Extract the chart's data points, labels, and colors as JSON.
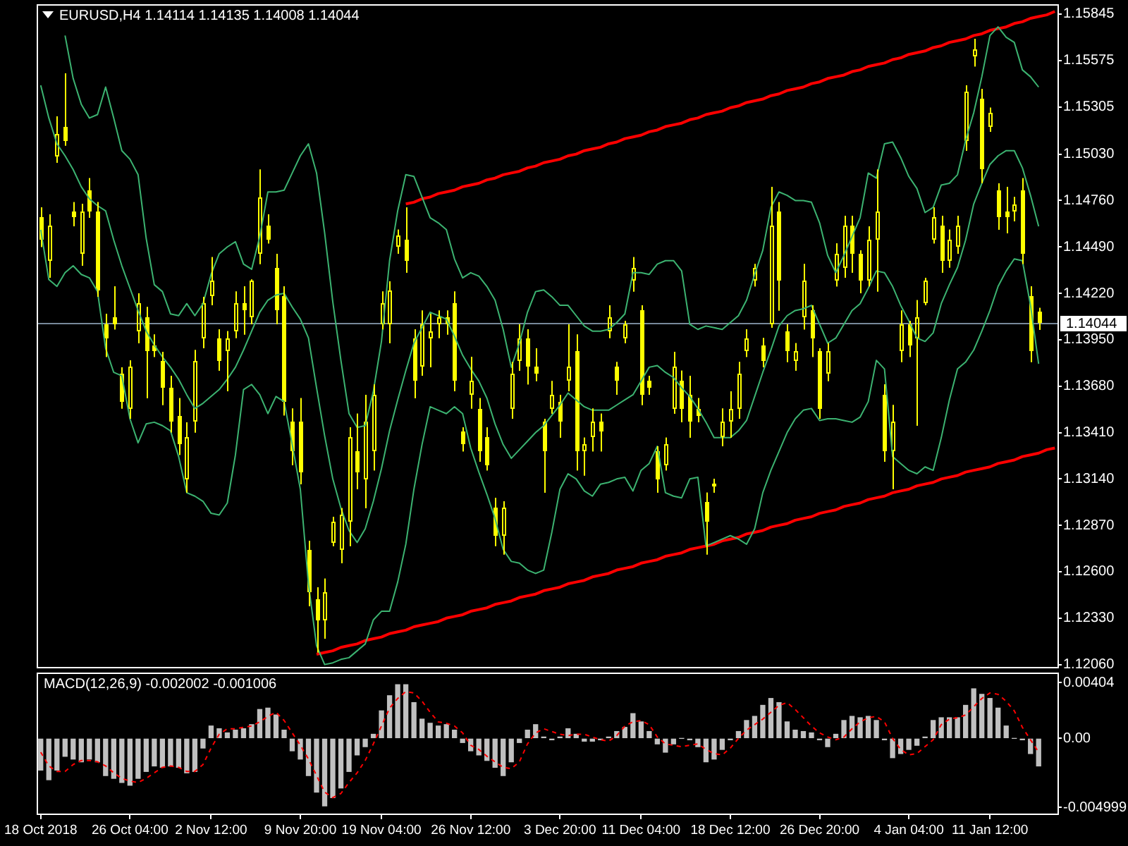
{
  "chart_data": [
    {
      "type": "candlestick",
      "title": "EURUSD,H4 1.14114 1.14135 1.14008 1.14044",
      "color": "#ffff00",
      "categories": [
        null,
        null,
        null,
        null,
        null,
        null,
        null,
        null,
        null,
        null,
        null,
        null,
        null,
        null,
        null,
        null,
        null,
        null,
        null,
        null,
        null,
        null,
        null,
        null,
        null,
        null,
        null,
        null,
        null,
        null,
        null,
        null,
        null,
        null,
        null,
        null,
        null,
        null,
        null,
        null,
        null,
        null,
        null,
        null,
        null,
        null,
        null,
        null,
        null,
        null,
        null,
        null,
        null,
        null,
        null,
        null,
        null,
        null,
        null,
        null,
        null,
        null,
        null,
        null,
        null,
        null,
        null,
        null,
        null,
        null,
        null,
        null,
        null,
        null,
        null,
        null,
        null,
        null,
        null,
        null,
        null,
        null,
        null,
        null,
        null,
        null,
        null,
        null,
        null,
        null,
        null,
        null,
        null,
        null,
        null,
        null,
        null,
        null,
        null,
        null,
        null,
        null,
        null,
        null,
        null,
        null,
        null,
        null,
        null,
        null,
        null,
        null,
        null,
        null,
        null,
        null,
        null,
        null,
        null,
        null,
        null,
        null,
        null,
        null,
        null,
        null
      ],
      "ohlc": [
        [
          1.1466,
          1.1472,
          1.1449,
          1.1453
        ],
        [
          1.1441,
          1.1468,
          1.1431,
          1.1461
        ],
        [
          1.1502,
          1.1525,
          1.1498,
          1.1515
        ],
        [
          1.1519,
          1.155,
          1.1508,
          1.1511
        ],
        [
          1.147,
          1.1475,
          1.1461,
          1.1466
        ],
        [
          1.1445,
          1.1474,
          1.1438,
          1.147
        ],
        [
          1.1482,
          1.1489,
          1.1466,
          1.147
        ],
        [
          1.147,
          1.1475,
          1.142,
          1.1424
        ],
        [
          1.1404,
          1.141,
          1.1385,
          1.1396
        ],
        [
          1.1408,
          1.1426,
          1.1401,
          1.1404
        ],
        [
          1.1375,
          1.1379,
          1.1355,
          1.1359
        ],
        [
          1.1355,
          1.1383,
          1.1349,
          1.1379
        ],
        [
          1.14,
          1.1422,
          1.1393,
          1.1416
        ],
        [
          1.1408,
          1.1414,
          1.1361,
          1.1388
        ],
        [
          1.1392,
          1.1398,
          1.1385,
          1.1388
        ],
        [
          1.1383,
          1.1388,
          1.1357,
          1.1367
        ],
        [
          1.1367,
          1.1374,
          1.1341,
          1.1347
        ],
        [
          1.1351,
          1.1361,
          1.1328,
          1.1334
        ],
        [
          1.1314,
          1.1347,
          1.1306,
          1.1338
        ],
        [
          1.1347,
          1.1389,
          1.1341,
          1.1383
        ],
        [
          1.1396,
          1.142,
          1.139,
          1.1416
        ],
        [
          1.142,
          1.1443,
          1.1415,
          1.1429
        ],
        [
          1.1396,
          1.1401,
          1.1377,
          1.1383
        ],
        [
          1.1388,
          1.14,
          1.1365,
          1.1396
        ],
        [
          1.14,
          1.1423,
          1.1396,
          1.1416
        ],
        [
          1.1416,
          1.1426,
          1.1398,
          1.1412
        ],
        [
          1.1408,
          1.143,
          1.1404,
          1.1429
        ],
        [
          1.1445,
          1.1494,
          1.1439,
          1.1478
        ],
        [
          1.1461,
          1.1468,
          1.1451,
          1.1453
        ],
        [
          1.1437,
          1.1445,
          1.1404,
          1.1412
        ],
        [
          1.142,
          1.1426,
          1.1351,
          1.1359
        ],
        [
          1.1347,
          1.1355,
          1.1322,
          1.133
        ],
        [
          1.1347,
          1.1361,
          1.1311,
          1.1318
        ],
        [
          1.1273,
          1.1278,
          1.124,
          1.1248
        ],
        [
          1.1244,
          1.1251,
          1.1213,
          1.1232
        ],
        [
          1.1232,
          1.1256,
          1.1221,
          1.1248
        ],
        [
          1.1277,
          1.1292,
          1.1275,
          1.1289
        ],
        [
          1.1273,
          1.1297,
          1.1265,
          1.1293
        ],
        [
          1.1289,
          1.1344,
          1.1275,
          1.1338
        ],
        [
          1.133,
          1.1352,
          1.1308,
          1.1318
        ],
        [
          1.1314,
          1.1363,
          1.1297,
          1.1347
        ],
        [
          1.133,
          1.1369,
          1.1319,
          1.1363
        ],
        [
          1.1404,
          1.1423,
          1.1401,
          1.1416
        ],
        [
          1.1404,
          1.1429,
          1.1393,
          1.1424
        ],
        [
          1.1449,
          1.1459,
          1.1445,
          1.1456
        ],
        [
          1.1453,
          1.1472,
          1.1434,
          1.1441
        ],
        [
          1.1396,
          1.1401,
          1.1361,
          1.1371
        ],
        [
          1.1379,
          1.1412,
          1.1374,
          1.1404
        ],
        [
          1.1396,
          1.141,
          1.1379,
          1.14
        ],
        [
          1.1404,
          1.1412,
          1.1396,
          1.1408
        ],
        [
          1.1408,
          1.1412,
          1.1398,
          1.1404
        ],
        [
          1.1416,
          1.1423,
          1.1365,
          1.1371
        ],
        [
          1.1342,
          1.1344,
          1.133,
          1.1334
        ],
        [
          1.1363,
          1.1385,
          1.1355,
          1.1371
        ],
        [
          1.1355,
          1.1361,
          1.1324,
          1.133
        ],
        [
          1.1338,
          1.1344,
          1.1319,
          1.1322
        ],
        [
          1.1297,
          1.1303,
          1.1275,
          1.1281
        ],
        [
          1.1281,
          1.1301,
          1.127,
          1.1297
        ],
        [
          1.1355,
          1.1382,
          1.1349,
          1.1375
        ],
        [
          1.1383,
          1.1404,
          1.1377,
          1.1396
        ],
        [
          1.1396,
          1.1401,
          1.1369,
          1.1379
        ],
        [
          1.1379,
          1.139,
          1.1371,
          1.1375
        ],
        [
          1.1347,
          1.1349,
          1.1306,
          1.133
        ],
        [
          1.1355,
          1.1371,
          1.1352,
          1.1363
        ],
        [
          1.1359,
          1.1363,
          1.1338,
          1.1347
        ],
        [
          1.1371,
          1.1404,
          1.1365,
          1.1379
        ],
        [
          1.1388,
          1.1398,
          1.1319,
          1.133
        ],
        [
          1.133,
          1.1338,
          1.1316,
          1.1334
        ],
        [
          1.1338,
          1.1355,
          1.133,
          1.1347
        ],
        [
          1.1347,
          1.1352,
          1.133,
          1.1342
        ],
        [
          1.14,
          1.1415,
          1.1396,
          1.1408
        ],
        [
          1.1379,
          1.1382,
          1.1363,
          1.1371
        ],
        [
          1.1396,
          1.1406,
          1.1393,
          1.1404
        ],
        [
          1.1429,
          1.1443,
          1.1423,
          1.1437
        ],
        [
          1.1412,
          1.1415,
          1.1357,
          1.1363
        ],
        [
          1.1371,
          1.1374,
          1.1363,
          1.1367
        ],
        [
          1.133,
          1.1333,
          1.1306,
          1.1314
        ],
        [
          1.1322,
          1.1338,
          1.1319,
          1.1334
        ],
        [
          1.1355,
          1.1388,
          1.1352,
          1.1379
        ],
        [
          1.1371,
          1.1377,
          1.1347,
          1.1355
        ],
        [
          1.1363,
          1.1374,
          1.1338,
          1.1347
        ],
        [
          1.1355,
          1.1361,
          1.1347,
          1.1351
        ],
        [
          1.1301,
          1.1306,
          1.127,
          1.1289
        ],
        [
          1.131,
          1.1314,
          1.1306,
          1.1311
        ],
        [
          1.1338,
          1.1355,
          1.1333,
          1.1347
        ],
        [
          1.1347,
          1.1365,
          1.1338,
          1.1355
        ],
        [
          1.1355,
          1.1382,
          1.1349,
          1.1375
        ],
        [
          1.1388,
          1.1401,
          1.1385,
          1.1396
        ],
        [
          1.1429,
          1.1439,
          1.1426,
          1.1437
        ],
        [
          1.1392,
          1.1396,
          1.1379,
          1.1383
        ],
        [
          1.1404,
          1.1484,
          1.1402,
          1.1461
        ],
        [
          1.147,
          1.1475,
          1.1412,
          1.1429
        ],
        [
          1.14,
          1.1404,
          1.1382,
          1.1388
        ],
        [
          1.1383,
          1.1393,
          1.1377,
          1.1388
        ],
        [
          1.1408,
          1.1439,
          1.1401,
          1.1429
        ],
        [
          1.1412,
          1.1415,
          1.1385,
          1.1396
        ],
        [
          1.1388,
          1.139,
          1.1349,
          1.1355
        ],
        [
          1.1375,
          1.1393,
          1.1371,
          1.1388
        ],
        [
          1.1429,
          1.1451,
          1.1426,
          1.1445
        ],
        [
          1.1437,
          1.1467,
          1.1431,
          1.1461
        ],
        [
          1.1461,
          1.1467,
          1.1434,
          1.1445
        ],
        [
          1.1445,
          1.1447,
          1.1422,
          1.1429
        ],
        [
          1.1429,
          1.1461,
          1.1426,
          1.1453
        ],
        [
          1.1453,
          1.1494,
          1.1423,
          1.147
        ],
        [
          1.1363,
          1.1369,
          1.1324,
          1.133
        ],
        [
          1.133,
          1.1357,
          1.1308,
          1.1347
        ],
        [
          1.1388,
          1.1412,
          1.1382,
          1.1404
        ],
        [
          1.1404,
          1.1406,
          1.1385,
          1.1392
        ],
        [
          1.1396,
          1.1418,
          1.1345,
          1.1408
        ],
        [
          1.1416,
          1.1431,
          1.1415,
          1.1429
        ],
        [
          1.1453,
          1.1472,
          1.1451,
          1.1466
        ],
        [
          1.1461,
          1.1467,
          1.1434,
          1.1441
        ],
        [
          1.1441,
          1.1459,
          1.1437,
          1.1453
        ],
        [
          1.1449,
          1.1467,
          1.1445,
          1.1461
        ],
        [
          1.1511,
          1.1543,
          1.1505,
          1.1539
        ],
        [
          1.156,
          1.157,
          1.1554,
          1.1564
        ],
        [
          1.1535,
          1.1541,
          1.1486,
          1.1494
        ],
        [
          1.1519,
          1.153,
          1.1516,
          1.1527
        ],
        [
          1.1482,
          1.1486,
          1.1459,
          1.1466
        ],
        [
          1.147,
          1.1484,
          1.1457,
          1.1466
        ],
        [
          1.147,
          1.1478,
          1.1464,
          1.1474
        ],
        [
          1.1482,
          1.1489,
          1.1439,
          1.1445
        ],
        [
          1.142,
          1.1426,
          1.1382,
          1.1388
        ],
        [
          1.14114,
          1.14135,
          1.14008,
          1.14044
        ],
        null,
        null
      ],
      "series": [
        {
          "type": "line",
          "color": "#3cb371",
          "values": [
            null,
            null,
            null,
            1.1572,
            1.1547,
            1.1532,
            1.1524,
            1.1526,
            1.1542,
            1.1524,
            1.1505,
            1.15,
            1.1491,
            1.1454,
            1.1427,
            1.1423,
            1.141,
            1.1409,
            1.1416,
            1.1409,
            1.1416,
            1.1433,
            1.1445,
            1.1449,
            1.1452,
            1.1439,
            1.1436,
            1.1455,
            1.1481,
            1.1481,
            1.1482,
            1.1492,
            1.1502,
            1.1509,
            1.1492,
            1.1457,
            1.1417,
            1.1383,
            1.1352,
            1.1344,
            1.1345,
            1.1365,
            1.1394,
            1.1441,
            1.147,
            1.1491,
            1.149,
            1.1478,
            1.1466,
            1.1463,
            1.1459,
            1.1442,
            1.1431,
            1.1434,
            1.1432,
            1.1426,
            1.1418,
            1.1401,
            1.1379,
            1.1393,
            1.1411,
            1.1423,
            1.1424,
            1.142,
            1.1415,
            1.1415,
            1.1409,
            1.1403,
            1.14,
            1.14,
            1.1401,
            1.1405,
            1.141,
            1.1434,
            1.1434,
            1.1433,
            1.1439,
            1.1441,
            1.1441,
            1.1435,
            1.1404,
            1.1401,
            1.1403,
            1.1402,
            1.1401,
            1.1405,
            1.1409,
            1.1418,
            1.1433,
            1.1447,
            1.1472,
            1.1481,
            1.1479,
            1.1476,
            1.1476,
            1.1475,
            1.1463,
            1.1444,
            1.1434,
            1.1444,
            1.1455,
            1.1466,
            1.1492,
            1.1489,
            1.1509,
            1.151,
            1.1501,
            1.149,
            1.1483,
            1.1469,
            1.1472,
            1.1485,
            1.1486,
            1.1491,
            1.1511,
            1.1527,
            1.1548,
            1.1572,
            1.1577,
            1.1571,
            1.1568,
            1.1552,
            1.1548,
            1.1542,
            null,
            null
          ]
        },
        {
          "type": "line",
          "color": "#3cb371",
          "values": [
            1.1543,
            1.1524,
            1.1509,
            1.1502,
            1.1494,
            1.1484,
            1.1477,
            1.1473,
            1.147,
            1.1453,
            1.1438,
            1.1425,
            1.1412,
            1.14,
            1.1392,
            1.1385,
            1.1379,
            1.1372,
            1.1363,
            1.1355,
            1.1358,
            1.1362,
            1.1366,
            1.1372,
            1.1379,
            1.1389,
            1.14,
            1.1411,
            1.1418,
            1.1421,
            1.1422,
            1.1414,
            1.1407,
            1.1396,
            1.1367,
            1.1339,
            1.1314,
            1.1297,
            1.1284,
            1.1277,
            1.1285,
            1.1301,
            1.132,
            1.1342,
            1.136,
            1.1377,
            1.1393,
            1.1402,
            1.1411,
            1.1409,
            1.1407,
            1.1397,
            1.1386,
            1.1378,
            1.1371,
            1.1361,
            1.1346,
            1.1334,
            1.1326,
            1.1331,
            1.1336,
            1.1341,
            1.1345,
            1.1351,
            1.1357,
            1.1364,
            1.136,
            1.1356,
            1.1354,
            1.1354,
            1.1354,
            1.1357,
            1.136,
            1.1363,
            1.1371,
            1.1379,
            1.138,
            1.1376,
            1.1373,
            1.1367,
            1.1362,
            1.1355,
            1.1347,
            1.1338,
            1.1338,
            1.1338,
            1.1342,
            1.1348,
            1.1362,
            1.1376,
            1.1389,
            1.1403,
            1.1409,
            1.1412,
            1.1413,
            1.1415,
            1.1404,
            1.1393,
            1.1396,
            1.1404,
            1.1412,
            1.1416,
            1.1425,
            1.1435,
            1.1434,
            1.1426,
            1.1415,
            1.1406,
            1.1396,
            1.1394,
            1.1399,
            1.1416,
            1.1427,
            1.1437,
            1.1453,
            1.1474,
            1.1486,
            1.1497,
            1.1502,
            1.1505,
            1.1505,
            1.1495,
            1.1479,
            1.1461,
            null,
            null
          ]
        },
        {
          "type": "line",
          "color": "#3cb371",
          "values": [
            1.1459,
            1.143,
            1.1426,
            1.1434,
            1.1438,
            1.1433,
            1.1431,
            1.1423,
            1.139,
            1.1376,
            1.1374,
            1.1349,
            1.1335,
            1.1346,
            1.1347,
            1.1345,
            1.1342,
            1.1327,
            1.1306,
            1.1304,
            1.1301,
            1.1294,
            1.1293,
            1.13,
            1.1328,
            1.1366,
            1.1369,
            1.1363,
            1.1352,
            1.1362,
            1.1359,
            1.1334,
            1.1308,
            1.1253,
            1.1217,
            1.1206,
            1.1207,
            1.1209,
            1.121,
            1.1214,
            1.1218,
            1.1232,
            1.1237,
            1.1237,
            1.1254,
            1.1276,
            1.1308,
            1.1334,
            1.1356,
            1.1354,
            1.1352,
            1.1356,
            1.1352,
            1.1332,
            1.1318,
            1.1305,
            1.1291,
            1.1273,
            1.1266,
            1.1265,
            1.1261,
            1.1259,
            1.1261,
            1.1283,
            1.1308,
            1.1317,
            1.1314,
            1.1307,
            1.1304,
            1.1311,
            1.1312,
            1.1314,
            1.1315,
            1.1307,
            1.1319,
            1.1323,
            1.1333,
            1.1306,
            1.1304,
            1.1303,
            1.1314,
            1.1315,
            1.1275,
            1.1277,
            1.1279,
            1.1281,
            1.1279,
            1.1276,
            1.1285,
            1.1306,
            1.1319,
            1.133,
            1.1341,
            1.1349,
            1.1354,
            1.1355,
            1.1348,
            1.1349,
            1.1349,
            1.1348,
            1.1347,
            1.135,
            1.1359,
            1.1383,
            1.1378,
            1.1327,
            1.1323,
            1.1319,
            1.1317,
            1.1321,
            1.1319,
            1.1338,
            1.136,
            1.1378,
            1.1382,
            1.1389,
            1.14,
            1.1412,
            1.1426,
            1.1435,
            1.1442,
            1.1441,
            1.1415,
            1.1381,
            null,
            null
          ]
        },
        {
          "type": "line",
          "color": "#ff0000",
          "values": [
            null,
            null,
            null,
            null,
            null,
            null,
            null,
            null,
            null,
            null,
            null,
            null,
            null,
            null,
            null,
            null,
            null,
            null,
            null,
            null,
            null,
            null,
            null,
            null,
            null,
            null,
            null,
            null,
            null,
            null,
            null,
            null,
            null,
            null,
            null,
            null,
            null,
            null,
            null,
            null,
            null,
            null,
            null,
            null,
            null,
            1.1474,
            1.1475,
            1.1477,
            1.1478,
            1.148,
            1.1481,
            1.1482,
            1.1484,
            1.1485,
            1.1486,
            1.1488,
            1.1489,
            1.1491,
            1.1492,
            1.1493,
            1.1495,
            1.1496,
            1.1498,
            1.1499,
            1.15,
            1.1502,
            1.1503,
            1.1505,
            1.1506,
            1.1507,
            1.1509,
            1.151,
            1.1512,
            1.1513,
            1.1514,
            1.1516,
            1.1517,
            1.1519,
            1.152,
            1.1521,
            1.1523,
            1.1524,
            1.1526,
            1.1527,
            1.1528,
            1.153,
            1.1531,
            1.1533,
            1.1534,
            1.1535,
            1.1537,
            1.1538,
            1.154,
            1.1541,
            1.1542,
            1.1544,
            1.1545,
            1.1547,
            1.1548,
            1.1549,
            1.1551,
            1.1552,
            1.1554,
            1.1555,
            1.1556,
            1.1558,
            1.1559,
            1.1561,
            1.1562,
            1.1563,
            1.1565,
            1.1566,
            1.1568,
            1.1569,
            1.157,
            1.1572,
            1.1573,
            1.1575,
            1.1576,
            1.1577,
            1.1579,
            1.158,
            1.1582,
            1.1583,
            1.1584,
            1.1586
          ]
        },
        {
          "type": "line",
          "color": "#ff0000",
          "values": [
            null,
            null,
            null,
            null,
            null,
            null,
            null,
            null,
            null,
            null,
            null,
            null,
            null,
            null,
            null,
            null,
            null,
            null,
            null,
            null,
            null,
            null,
            null,
            null,
            null,
            null,
            null,
            null,
            null,
            null,
            null,
            null,
            null,
            null,
            1.1212,
            1.1213,
            1.1214,
            1.1216,
            1.1217,
            1.1218,
            1.122,
            1.1221,
            1.1222,
            1.1224,
            1.1225,
            1.1226,
            1.1228,
            1.1229,
            1.123,
            1.1231,
            1.1233,
            1.1234,
            1.1235,
            1.1237,
            1.1238,
            1.1239,
            1.1241,
            1.1242,
            1.1243,
            1.1245,
            1.1246,
            1.1247,
            1.1249,
            1.125,
            1.1251,
            1.1253,
            1.1254,
            1.1255,
            1.1257,
            1.1258,
            1.1259,
            1.1261,
            1.1262,
            1.1263,
            1.1265,
            1.1266,
            1.1267,
            1.1269,
            1.127,
            1.1271,
            1.1273,
            1.1274,
            1.1275,
            1.1276,
            1.1278,
            1.1279,
            1.128,
            1.1282,
            1.1283,
            1.1284,
            1.1286,
            1.1287,
            1.1288,
            1.129,
            1.1291,
            1.1292,
            1.1294,
            1.1295,
            1.1296,
            1.1298,
            1.1299,
            1.13,
            1.1302,
            1.1303,
            1.1304,
            1.1306,
            1.1307,
            1.1308,
            1.131,
            1.1311,
            1.1312,
            1.1314,
            1.1315,
            1.1316,
            1.1318,
            1.1319,
            1.132,
            1.1321,
            1.1323,
            1.1324,
            1.1325,
            1.1327,
            1.1328,
            1.1329,
            1.1331,
            1.1332
          ]
        }
      ],
      "ylim": [
        1.12038,
        1.15902
      ],
      "yticks": [
        1.15845,
        1.15575,
        1.15305,
        {
          "value": 1.1503,
          "label": "1.15030"
        },
        {
          "value": 1.1476,
          "label": "1.14760"
        },
        {
          "value": 1.1449,
          "label": "1.14490"
        },
        {
          "value": 1.1422,
          "label": "1.14220"
        },
        {
          "value": 1.1395,
          "label": "1.13950"
        },
        {
          "value": 1.1368,
          "label": "1.13680"
        },
        {
          "value": 1.1341,
          "label": "1.13410"
        },
        {
          "value": 1.1314,
          "label": "1.13140"
        },
        {
          "value": 1.1287,
          "label": "1.12870"
        },
        {
          "value": 1.126,
          "label": "1.12600"
        },
        {
          "value": 1.1233,
          "label": "1.12330"
        },
        {
          "value": 1.1206,
          "label": "1.12060"
        }
      ],
      "tick_labels": "y",
      "ref_lines": [
        {
          "axis": "y",
          "value": 1.14044,
          "label": "1.14044",
          "color": "#778899"
        }
      ]
    },
    {
      "type": "bar",
      "title": "MACD(12,26,9) -0.002002 -0.001006",
      "categories": [
        "18 Oct 2018",
        null,
        null,
        null,
        null,
        null,
        null,
        null,
        null,
        null,
        null,
        "26 Oct 04:00",
        null,
        null,
        null,
        null,
        null,
        null,
        null,
        null,
        null,
        "2 Nov 12:00",
        null,
        null,
        null,
        null,
        null,
        null,
        null,
        null,
        null,
        null,
        "9 Nov 20:00",
        null,
        null,
        null,
        null,
        null,
        null,
        null,
        null,
        null,
        "19 Nov 04:00",
        null,
        null,
        null,
        null,
        null,
        null,
        null,
        null,
        null,
        null,
        "26 Nov 12:00",
        null,
        null,
        null,
        null,
        null,
        null,
        null,
        null,
        null,
        null,
        "3 Dec 20:00",
        null,
        null,
        null,
        null,
        null,
        null,
        null,
        null,
        null,
        "11 Dec 04:00",
        null,
        null,
        null,
        null,
        null,
        null,
        null,
        null,
        null,
        null,
        "18 Dec 12:00",
        null,
        null,
        null,
        null,
        null,
        null,
        null,
        null,
        null,
        null,
        "26 Dec 20:00",
        null,
        null,
        null,
        null,
        null,
        null,
        null,
        null,
        null,
        null,
        "4 Jan 04:00",
        null,
        null,
        null,
        null,
        null,
        null,
        null,
        null,
        null,
        "11 Jan 12:00",
        null,
        null,
        null,
        null,
        null,
        null,
        null,
        null
      ],
      "series": [
        {
          "type": "bar",
          "color": "#c0c0c0",
          "values": [
            -0.0023,
            -0.003,
            -0.0023,
            -0.0013,
            -0.0015,
            -0.0017,
            -0.0015,
            -0.0017,
            -0.0027,
            -0.0029,
            -0.0032,
            -0.0034,
            -0.0029,
            -0.0024,
            -0.002,
            -0.0021,
            -0.002,
            -0.0021,
            -0.0025,
            -0.0024,
            -0.0007,
            0.0009,
            0.0007,
            0.0004,
            0.0006,
            0.0007,
            0.001,
            0.0021,
            0.0022,
            0.0017,
            0.0006,
            -0.0009,
            -0.0015,
            -0.0027,
            -0.0039,
            -0.0049,
            -0.0043,
            -0.0036,
            -0.0024,
            -0.0012,
            -0.0006,
            0.0003,
            0.002,
            0.0031,
            0.0039,
            0.0039,
            0.0026,
            0.0014,
            0.0011,
            0.0009,
            0.001,
            0.0006,
            -0.0003,
            -0.0009,
            -0.0012,
            -0.0016,
            -0.0021,
            -0.0027,
            -0.0017,
            -0.0003,
            0.0006,
            0.001,
            0.0001,
            -0.0001,
            0.0001,
            0.0007,
            0.0003,
            -0.0002,
            -0.0002,
            -0.0001,
            0.0001,
            0.0005,
            0.0008,
            0.0018,
            0.0012,
            0.0005,
            -0.0004,
            -0.001,
            -0.0004,
            0,
            -0.0001,
            -0.0006,
            -0.0017,
            -0.0015,
            -0.0008,
            -0.0001,
            0.0005,
            0.0013,
            0.0016,
            0.0024,
            0.0029,
            0.0026,
            0.0012,
            0.0006,
            0.0005,
            0.0004,
            -0.0001,
            -0.0006,
            0.0003,
            0.0013,
            0.0016,
            0.0015,
            0.0016,
            0.0013,
            -0.0001,
            -0.0014,
            -0.0011,
            -0.0008,
            -0.0005,
            0.0001,
            0.0013,
            0.0015,
            0.0015,
            0.0015,
            0.0024,
            0.0036,
            0.0032,
            0.0029,
            0.0022,
            0.0009,
            0,
            -0.0001,
            -0.0011,
            -0.002,
            null,
            null
          ]
        },
        {
          "type": "line",
          "color": "#ff0000",
          "line_style": "dashed",
          "values": [
            -0.001,
            -0.002,
            -0.0024,
            -0.0024,
            -0.0019,
            -0.0016,
            -0.0016,
            -0.0017,
            -0.002,
            -0.0025,
            -0.0029,
            -0.0031,
            -0.0032,
            -0.0029,
            -0.0025,
            -0.0021,
            -0.002,
            -0.0021,
            -0.0024,
            -0.0024,
            -0.0019,
            -0.0007,
            0.0003,
            0.0007,
            0.0007,
            0.0008,
            0.0009,
            0.0012,
            0.0016,
            0.0019,
            0.0013,
            0.0004,
            -0.0005,
            -0.0015,
            -0.0027,
            -0.0039,
            -0.0043,
            -0.004,
            -0.0032,
            -0.0025,
            -0.0016,
            -0.0004,
            0.0009,
            0.0022,
            0.0029,
            0.0034,
            0.0033,
            0.0027,
            0.0019,
            0.0012,
            0.0011,
            0.0009,
            0.0004,
            -0.0005,
            -0.0008,
            -0.0013,
            -0.0017,
            -0.0021,
            -0.0022,
            -0.0017,
            -0.0004,
            0.0004,
            0.0007,
            0.0005,
            0.0003,
            0.0002,
            0.0003,
            0.0003,
            0.0001,
            -0.0001,
            -0.0002,
            0.0002,
            0.0009,
            0.0012,
            0.0013,
            0.001,
            0.0001,
            -0.0004,
            -0.0005,
            -0.0006,
            -0.0005,
            -0.0004,
            -0.0008,
            -0.0011,
            -0.0012,
            -0.0007,
            0,
            0.0006,
            0.001,
            0.0014,
            0.0019,
            0.0024,
            0.0026,
            0.0021,
            0.0015,
            0.0009,
            0.0004,
            0.0001,
            -0.0001,
            0.0001,
            0.0007,
            0.0012,
            0.0015,
            0.0016,
            0.0012,
            0,
            -0.0008,
            -0.0012,
            -0.0011,
            -0.0006,
            -0.0001,
            0.001,
            0.0014,
            0.0015,
            0.0017,
            0.0023,
            0.0029,
            0.0033,
            0.0032,
            0.0027,
            0.002,
            0.0008,
            -0.0001,
            -0.001,
            null,
            null
          ]
        }
      ],
      "ylim": [
        -0.00556,
        0.00478
      ],
      "yticks": [
        0.00404,
        {
          "value": 0,
          "label": "0.00"
        },
        -0.004999
      ]
    }
  ]
}
